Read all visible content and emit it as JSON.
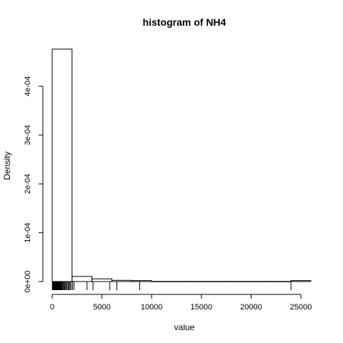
{
  "chart_data": {
    "type": "histogram",
    "title": "histogram of NH4",
    "xlabel": "value",
    "ylabel": "Density",
    "xlim": [
      0,
      26000
    ],
    "ylim": [
      0,
      0.00048
    ],
    "x_ticks": [
      0,
      5000,
      10000,
      15000,
      20000,
      25000
    ],
    "x_tick_labels": [
      "0",
      "5000",
      "10000",
      "15000",
      "20000",
      "25000"
    ],
    "y_ticks": [
      0,
      0.0001,
      0.0002,
      0.0003,
      0.0004
    ],
    "y_tick_labels": [
      "0e+00",
      "1e-04",
      "2e-04",
      "3e-04",
      "4e-04"
    ],
    "bins": [
      {
        "x0": 0,
        "x1": 2000,
        "density": 0.000476
      },
      {
        "x0": 2000,
        "x1": 4000,
        "density": 1.05e-05
      },
      {
        "x0": 4000,
        "x1": 6000,
        "density": 5.5e-06
      },
      {
        "x0": 6000,
        "x1": 8000,
        "density": 2.5e-06
      },
      {
        "x0": 8000,
        "x1": 10000,
        "density": 2e-06
      },
      {
        "x0": 10000,
        "x1": 12000,
        "density": 3e-07
      },
      {
        "x0": 12000,
        "x1": 14000,
        "density": 3e-07
      },
      {
        "x0": 14000,
        "x1": 16000,
        "density": 3e-07
      },
      {
        "x0": 16000,
        "x1": 18000,
        "density": 3e-07
      },
      {
        "x0": 18000,
        "x1": 20000,
        "density": 3e-07
      },
      {
        "x0": 20000,
        "x1": 22000,
        "density": 3e-07
      },
      {
        "x0": 22000,
        "x1": 24000,
        "density": 3e-07
      },
      {
        "x0": 24000,
        "x1": 26000,
        "density": 2e-06
      }
    ],
    "rug": [
      20,
      60,
      100,
      140,
      180,
      220,
      260,
      300,
      340,
      380,
      420,
      460,
      500,
      560,
      620,
      680,
      740,
      800,
      860,
      920,
      980,
      1060,
      1140,
      1220,
      1300,
      1400,
      1500,
      1600,
      1700,
      1800,
      1900,
      2050,
      2200,
      3500,
      4100,
      5800,
      6500,
      8800,
      24000
    ]
  }
}
